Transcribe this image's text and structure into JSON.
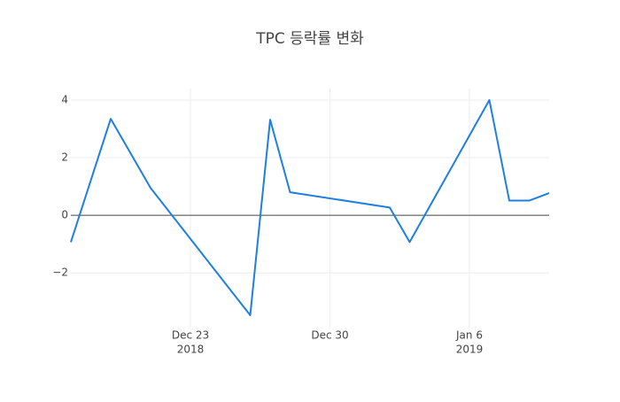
{
  "chart_data": {
    "type": "line",
    "title": "TPC 등락률 변화",
    "x": [
      "2018-12-17",
      "2018-12-19",
      "2018-12-21",
      "2018-12-26",
      "2018-12-27",
      "2018-12-28",
      "2019-01-02",
      "2019-01-03",
      "2019-01-07",
      "2019-01-08",
      "2019-01-09",
      "2019-01-10"
    ],
    "series": [
      {
        "name": "TPC",
        "color": "#1f7fe0",
        "values": [
          -0.93,
          3.35,
          0.95,
          -3.47,
          3.32,
          0.8,
          0.27,
          -0.93,
          4.0,
          0.51,
          0.51,
          0.77
        ]
      }
    ],
    "xlim": [
      "2018-12-17",
      "2019-01-10"
    ],
    "xticks": [
      {
        "value": "2018-12-23",
        "label": "Dec 23",
        "year": "2018"
      },
      {
        "value": "2018-12-30",
        "label": "Dec 30"
      },
      {
        "value": "2019-01-06",
        "label": "Jan 6",
        "year": "2019"
      }
    ],
    "ylim": [
      -3.9,
      4.4
    ],
    "yticks": [
      {
        "value": -2,
        "label": "−2"
      },
      0,
      2,
      4
    ],
    "grid": true
  }
}
